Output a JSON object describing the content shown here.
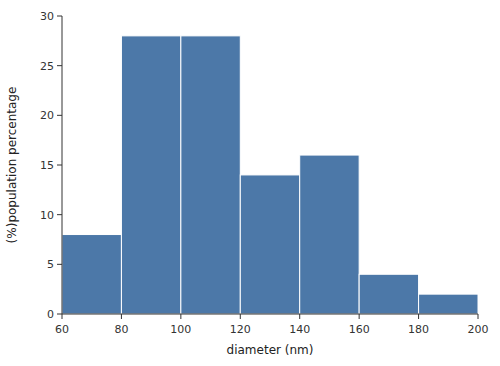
{
  "chart_data": {
    "type": "histogram",
    "bins": [
      60,
      80,
      100,
      120,
      140,
      160,
      180,
      200
    ],
    "values": [
      8,
      28,
      28,
      14,
      16,
      4,
      2
    ],
    "xlabel": "diameter (nm)",
    "ylabel": "(%)population percentage",
    "xlim": [
      60,
      200
    ],
    "ylim": [
      0,
      30
    ],
    "xticks": [
      60,
      80,
      100,
      120,
      140,
      160,
      180,
      200
    ],
    "yticks": [
      0,
      5,
      10,
      15,
      20,
      25,
      30
    ],
    "color": "#4c78a8",
    "grid": false
  }
}
